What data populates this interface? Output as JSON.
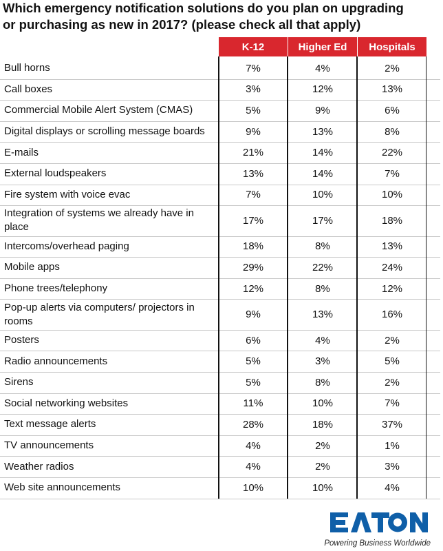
{
  "title": {
    "line1": "Which emergency notification solutions do you plan on upgrading",
    "line2": "or purchasing as new in 2017? (please check all that apply)"
  },
  "chart_data": {
    "type": "table",
    "title": "Which emergency notification solutions do you plan on upgrading or purchasing as new in 2017? (please check all that apply)",
    "columns": [
      "K-12",
      "Higher Ed",
      "Hospitals"
    ],
    "rows": [
      {
        "label": "Bull horns",
        "values": [
          "7%",
          "4%",
          "2%"
        ]
      },
      {
        "label": "Call boxes",
        "values": [
          "3%",
          "12%",
          "13%"
        ]
      },
      {
        "label": "Commercial Mobile Alert System (CMAS)",
        "values": [
          "5%",
          "9%",
          "6%"
        ]
      },
      {
        "label": "Digital displays or scrolling message boards",
        "values": [
          "9%",
          "13%",
          "8%"
        ]
      },
      {
        "label": "E-mails",
        "values": [
          "21%",
          "14%",
          "22%"
        ]
      },
      {
        "label": "External loudspeakers",
        "values": [
          "13%",
          "14%",
          "7%"
        ]
      },
      {
        "label": "Fire system with voice evac",
        "values": [
          "7%",
          "10%",
          "10%"
        ]
      },
      {
        "label": "Integration of systems we already have in place",
        "values": [
          "17%",
          "17%",
          "18%"
        ]
      },
      {
        "label": "Intercoms/overhead paging",
        "values": [
          "18%",
          "8%",
          "13%"
        ]
      },
      {
        "label": "Mobile apps",
        "values": [
          "29%",
          "22%",
          "24%"
        ]
      },
      {
        "label": "Phone trees/telephony",
        "values": [
          "12%",
          "8%",
          "12%"
        ]
      },
      {
        "label": "Pop-up alerts via computers/ projectors in rooms",
        "values": [
          "9%",
          "13%",
          "16%"
        ]
      },
      {
        "label": "Posters",
        "values": [
          "6%",
          "4%",
          "2%"
        ]
      },
      {
        "label": "Radio announcements",
        "values": [
          "5%",
          "3%",
          "5%"
        ]
      },
      {
        "label": "Sirens",
        "values": [
          "5%",
          "8%",
          "2%"
        ]
      },
      {
        "label": "Social networking websites",
        "values": [
          "11%",
          "10%",
          "7%"
        ]
      },
      {
        "label": "Text message alerts",
        "values": [
          "28%",
          "18%",
          "37%"
        ]
      },
      {
        "label": "TV announcements",
        "values": [
          "4%",
          "2%",
          "1%"
        ]
      },
      {
        "label": "Weather radios",
        "values": [
          "4%",
          "2%",
          "3%"
        ]
      },
      {
        "label": "Web site announcements",
        "values": [
          "10%",
          "10%",
          "4%"
        ]
      }
    ]
  },
  "logo": {
    "brand": "EATON",
    "tagline": "Powering Business Worldwide"
  },
  "colors": {
    "header_bg": "#d9272e",
    "logo_blue": "#0f5fa8"
  }
}
